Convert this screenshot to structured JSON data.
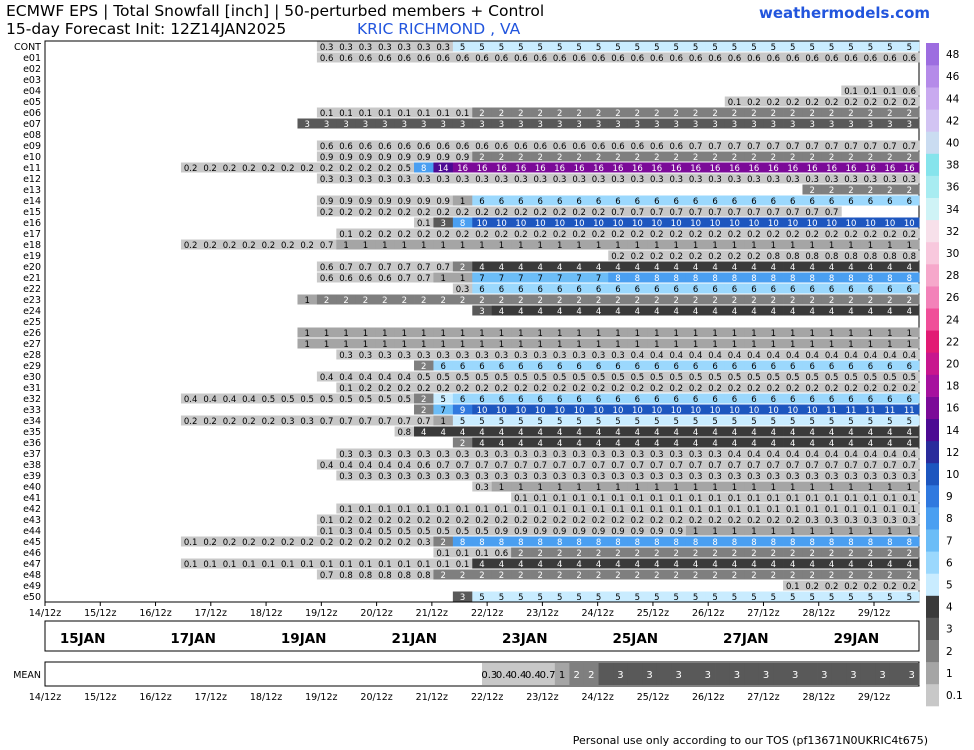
{
  "header": {
    "title_line1": "ECMWF EPS | Total Snowfall [inch] | 50-perturbed members + Control",
    "title_line2": "15-day Forecast Init: 12Z14JAN2025",
    "location": "KRIC RICHMOND      , VA",
    "site": "weathermodels.com"
  },
  "footer": "Personal use only according to our TOS (pf13671N0UKRIC4t675)",
  "chart_data": {
    "type": "heatmap",
    "title": "ECMWF EPS | Total Snowfall [inch] | 50-perturbed members + Control",
    "timesteps_per_row": 30,
    "x_ticks": [
      "14/12z",
      "15/12z",
      "16/12z",
      "17/12z",
      "18/12z",
      "19/12z",
      "20/12z",
      "21/12z",
      "22/12z",
      "23/12z",
      "24/12z",
      "25/12z",
      "26/12z",
      "27/12z",
      "28/12z",
      "29/12z"
    ],
    "date_labels": [
      "15JAN",
      "17JAN",
      "19JAN",
      "21JAN",
      "23JAN",
      "25JAN",
      "27JAN",
      "29JAN"
    ],
    "colorbar_ticks": [
      0.1,
      1,
      2,
      3,
      4,
      5,
      6,
      7,
      8,
      9,
      10,
      12,
      14,
      16,
      18,
      20,
      22,
      24,
      26,
      28,
      30,
      32,
      34,
      36,
      38,
      40,
      42,
      44,
      46,
      48
    ],
    "colorbar_colors": [
      "#c8c8c8",
      "#a5a5a5",
      "#7f7f7f",
      "#595959",
      "#3a3a3a",
      "#c9ecff",
      "#9bd8fd",
      "#6cbdf7",
      "#4a9ff1",
      "#3079df",
      "#1d56bf",
      "#2a2c9c",
      "#4c0a93",
      "#7b0a98",
      "#a6119e",
      "#c8168e",
      "#e21b74",
      "#f04e99",
      "#f382b9",
      "#f6a8cb",
      "#f8c8dd",
      "#f7e0ea",
      "#cff3f6",
      "#a8ecf1",
      "#86e4ec",
      "#cadcf1",
      "#d2c4f3",
      "#c9aaf0",
      "#b58be9",
      "#9d6de0"
    ],
    "mean_label": "MEAN",
    "mean": "0,0,0,0,0,0,0,0,0,0,0,0,0,0,0,0,0,0,0,0,0,0,0,0,0,0,0,0,0,0,0.3,0.4,0.4,0.4,0.7,1,2,2,3,3,3,3,3,3,3,3,3,3,3,3,3,3,3,3,3,3,3,3,3,3",
    "members": [
      {
        "name": "CONT",
        "values": "0,0,0,0,0,0,0,0,0,0,0,0,0,0,0,0,0,0,0,0,0,0,0,0,0,0,0,0,0,0,0,0,0,0,0,0,0,0,0,0,0,0,0,0,0,0,0,0,0,0,0,0,0,0,0,0,0,0,0,0,0,0,0,0,0,0,0,0,0,0,0,0,0,0,0,0,0,0,0,0,0,0,0,0,0,0,0,0,0,0"
      },
      {
        "name": "CONT",
        "values": "0,0,0,0,0,0,0,0,0,0,0,0,0,0,0.3,0.3,0.3,0.3,0.3,0.3,0.3,5,5,5,5,5,5,5,5,5,5,5,5,5,5,5,5,5,5,5,5,5,5,5,5"
      },
      {
        "name": "e01",
        "values": "0,0,0,0,0,0,0,0,0,0,0,0,0,0,0.6,0.6,0.6,0.6,0.6,0.6,0.6,0.6,0.6,0.6,0.6,0.6,0.6,0.6,0.6,0.6,0.6,0.6,0.6,0.6,0.6,0.6,0.6,0.6,0.6,0.6,0.6,0.6,0.6,0.6,0.6"
      },
      {
        "name": "e02",
        "values": ""
      },
      {
        "name": "e03",
        "values": ""
      },
      {
        "name": "e04",
        "values": "0,0,0,0,0,0,0,0,0,0,0,0,0,0,0,0,0,0,0,0,0,0,0,0,0,0,0,0,0,0,0,0,0,0,0,0,0,0,0,0,0,0.1,0.1,0.1,0.6"
      },
      {
        "name": "e05",
        "values": "0,0,0,0,0,0,0,0,0,0,0,0,0,0,0,0,0,0,0,0,0,0,0,0,0,0,0,0,0,0,0,0,0,0,0,0.1,0.2,0.2,0.2,0.2,0.2,0.2,0.2,0.2,0.2"
      },
      {
        "name": "e06",
        "values": "0,0,0,0,0,0,0,0,0,0,0,0,0,0,0.1,0.1,0.1,0.1,0.1,0.1,0.1,0.1,2,2,2,2,2,2,2,2,2,2,2,2,2,2,2,2,2,2,2,2,2,2,2"
      },
      {
        "name": "e07",
        "values": "0,0,0,0,0,0,0,0,0,0,0,0,0,3,3,3,3,3,3,3,3,3,3,3,3,3,3,3,3,3,3,3,3,3,3,3,3,3,3,3,3,3,3,3,3"
      },
      {
        "name": "e08",
        "values": ""
      },
      {
        "name": "e09",
        "values": "0,0,0,0,0,0,0,0,0,0,0,0,0,0,0.6,0.6,0.6,0.6,0.6,0.6,0.6,0.6,0.6,0.6,0.6,0.6,0.6,0.6,0.6,0.6,0.6,0.6,0.6,0.7,0.7,0.7,0.7,0.7,0.7,0.7,0.7,0.7,0.7,0.7,0.7"
      },
      {
        "name": "e10",
        "values": "0,0,0,0,0,0,0,0,0,0,0,0,0,0,0.9,0.9,0.9,0.9,0.9,0.9,0.9,0.9,2,2,2,2,2,2,2,2,2,2,2,2,2,2,2,2,2,2,2,2,2,2,2"
      },
      {
        "name": "e11",
        "values": "0,0,0,0,0,0,0,0.2,0.2,0.2,0.2,0.2,0.2,0.2,0.2,0.2,0.2,0.2,0.5,8,14,16,16,16,16,16,16,16,16,16,16,16,16,16,16,16,16,16,16,16,16,16,16,16,16"
      },
      {
        "name": "e12",
        "values": "0,0,0,0,0,0,0,0,0,0,0,0,0,0,0.3,0.3,0.3,0.3,0.3,0.3,0.3,0.3,0.3,0.3,0.3,0.3,0.3,0.3,0.3,0.3,0.3,0.3,0.3,0.3,0.3,0.3,0.3,0.3,0.3,0.3,0.3,0.3,0.3,0.3,0.3"
      },
      {
        "name": "e13",
        "values": "0,0,0,0,0,0,0,0,0,0,0,0,0,0,0,0,0,0,0,0,0,0,0,0,0,0,0,0,0,0,0,0,0,0,0,0,0,0,0,2,2,2,2,2,2"
      },
      {
        "name": "e14",
        "values": "0,0,0,0,0,0,0,0,0,0,0,0,0,0,0.9,0.9,0.9,0.9,0.9,0.9,0.9,1,6,6,6,6,6,6,6,6,6,6,6,6,6,6,6,6,6,6,6,6,6,6,6"
      },
      {
        "name": "e15",
        "values": "0,0,0,0,0,0,0,0,0,0,0,0,0,0,0.2,0.2,0.2,0.2,0.2,0.2,0.2,0.2,0.2,0.2,0.2,0.2,0.2,0.2,0.2,0.7,0.7,0.7,0.7,0.7,0.7,0.7,0.7,0.7,0.7,0.7,0.7"
      },
      {
        "name": "e16",
        "values": "0,0,0,0,0,0,0,0,0,0,0,0,0,0,0,0,0,0,0,0.1,3,8,10,10,10,10,10,10,10,10,10,10,10,10,10,10,10,10,10,10,10,10,10,10,10"
      },
      {
        "name": "e17",
        "values": "0,0,0,0,0,0,0,0,0,0,0,0,0,0,0,0.1,0.2,0.2,0.2,0.2,0.2,0.2,0.2,0.2,0.2,0.2,0.2,0.2,0.2,0.2,0.2,0.2,0.2,0.2,0.2,0.2,0.2,0.2,0.2,0.2,0.2,0.2,0.2,0.2,0.2"
      },
      {
        "name": "e18",
        "values": "0,0,0,0,0,0,0,0.2,0.2,0.2,0.2,0.2,0.2,0.2,0.7,1,1,1,1,1,1,1,1,1,1,1,1,1,1,1,1,1,1,1,1,1,1,1,1,1,1,1,1,1,1"
      },
      {
        "name": "e19",
        "values": "0,0,0,0,0,0,0,0,0,0,0,0,0,0,0,0,0,0,0,0,0,0,0,0,0,0,0,0,0,0.2,0.2,0.2,0.2,0.2,0.2,0.2,0.2,0.8,0.8,0.8,0.8,0.8,0.8,0.8,0.8"
      },
      {
        "name": "e20",
        "values": "0,0,0,0,0,0,0,0,0,0,0,0,0,0,0.6,0.7,0.7,0.7,0.7,0.7,0.7,2,4,4,4,4,4,4,4,4,4,4,4,4,4,4,4,4,4,4,4,4,4,4,4"
      },
      {
        "name": "e21",
        "values": "0,0,0,0,0,0,0,0,0,0,0,0,0,0,0.6,0.6,0.6,0.6,0.7,0.7,1,1,7,7,7,7,7,7,7,8,8,8,8,8,8,8,8,8,8,8,8,8,8,8,8"
      },
      {
        "name": "e22",
        "values": "0,0,0,0,0,0,0,0,0,0,0,0,0,0,0,0,0,0,0,0,0,0.3,6,6,6,6,6,6,6,6,6,6,6,6,6,6,6,6,6,6,6,6,6,6,6"
      },
      {
        "name": "e23",
        "values": "0,0,0,0,0,0,0,0,0,0,0,0,0,1,2,2,2,2,2,2,2,2,2,2,2,2,2,2,2,2,2,2,2,2,2,2,2,2,2,2,2,2,2,2,2"
      },
      {
        "name": "e24",
        "values": "0,0,0,0,0,0,0,0,0,0,0,0,0,0,0,0,0,0,0,0,0,0,3,4,4,4,4,4,4,4,4,4,4,4,4,4,4,4,4,4,4,4,4,4,4"
      },
      {
        "name": "e25",
        "values": ""
      },
      {
        "name": "e26",
        "values": "0,0,0,0,0,0,0,0,0,0,0,0,0,1,1,1,1,1,1,1,1,1,1,1,1,1,1,1,1,1,1,1,1,1,1,1,1,1,1,1,1,1,1,1,1"
      },
      {
        "name": "e27",
        "values": "0,0,0,0,0,0,0,0,0,0,0,0,0,1,1,1,1,1,1,1,1,1,1,1,1,1,1,1,1,1,1,1,1,1,1,1,1,1,1,1,1,1,1,1,1"
      },
      {
        "name": "e28",
        "values": "0,0,0,0,0,0,0,0,0,0,0,0,0,0,0,0.3,0.3,0.3,0.3,0.3,0.3,0.3,0.3,0.3,0.3,0.3,0.3,0.3,0.3,0.3,0.4,0.4,0.4,0.4,0.4,0.4,0.4,0.4,0.4,0.4,0.4,0.4,0.4,0.4,0.4"
      },
      {
        "name": "e29",
        "values": "0,0,0,0,0,0,0,0,0,0,0,0,0,0,0,0,0,0,0,2,6,6,6,6,6,6,6,6,6,6,6,6,6,6,6,6,6,6,6,6,6,6,6,6,6"
      },
      {
        "name": "e30",
        "values": "0,0,0,0,0,0,0,0,0,0,0,0,0,0,0.4,0.4,0.4,0.4,0.4,0.5,0.5,0.5,0.5,0.5,0.5,0.5,0.5,0.5,0.5,0.5,0.5,0.5,0.5,0.5,0.5,0.5,0.5,0.5,0.5,0.5,0.5,0.5,0.5,0.5,0.5"
      },
      {
        "name": "e31",
        "values": "0,0,0,0,0,0,0,0,0,0,0,0,0,0,0,0.1,0.2,0.2,0.2,0.2,0.2,0.2,0.2,0.2,0.2,0.2,0.2,0.2,0.2,0.2,0.2,0.2,0.2,0.2,0.2,0.2,0.2,0.2,0.2,0.2,0.2,0.2,0.2,0.2,0.2"
      },
      {
        "name": "e32",
        "values": "0,0,0,0,0,0,0,0.4,0.4,0.4,0.4,0.5,0.5,0.5,0.5,0.5,0.5,0.5,0.5,2,5,6,6,6,6,6,6,6,6,6,6,6,6,6,6,6,6,6,6,6,6,6,6,6,6"
      },
      {
        "name": "e33",
        "values": "0,0,0,0,0,0,0,0,0,0,0,0,0,0,0,0,0,0,0,2,7,9,10,10,10,10,10,10,10,10,10,10,10,10,10,10,10,10,10,10,11,11,11,11,11"
      },
      {
        "name": "e34",
        "values": "0,0,0,0,0,0,0,0.2,0.2,0.2,0.2,0.2,0.3,0.3,0.7,0.7,0.7,0.7,0.7,0.7,1,5,5,5,5,5,5,5,5,5,5,5,5,5,5,5,5,5,5,5,5,5,5,5,5"
      },
      {
        "name": "e35",
        "values": "0,0,0,0,0,0,0,0,0,0,0,0,0,0,0,0,0,0,0.8,4,4,4,4,4,4,4,4,4,4,4,4,4,4,4,4,4,4,4,4,4,4,4,4,4,4"
      },
      {
        "name": "e36",
        "values": "0,0,0,0,0,0,0,0,0,0,0,0,0,0,0,0,0,0,0,0,0,2,4,4,4,4,4,4,4,4,4,4,4,4,4,4,4,4,4,4,4,4,4,4,4"
      },
      {
        "name": "e37",
        "values": "0,0,0,0,0,0,0,0,0,0,0,0,0,0,0,0.3,0.3,0.3,0.3,0.3,0.3,0.3,0.3,0.3,0.3,0.3,0.3,0.3,0.3,0.3,0.3,0.3,0.3,0.3,0.3,0.4,0.4,0.4,0.4,0.4,0.4,0.4,0.4,0.4,0.4"
      },
      {
        "name": "e38",
        "values": "0,0,0,0,0,0,0,0,0,0,0,0,0,0,0.4,0.4,0.4,0.4,0.4,0.6,0.7,0.7,0.7,0.7,0.7,0.7,0.7,0.7,0.7,0.7,0.7,0.7,0.7,0.7,0.7,0.7,0.7,0.7,0.7,0.7,0.7,0.7,0.7,0.7,0.7"
      },
      {
        "name": "e39",
        "values": "0,0,0,0,0,0,0,0,0,0,0,0,0,0,0,0.3,0.3,0.3,0.3,0.3,0.3,0.3,0.3,0.3,0.3,0.3,0.3,0.3,0.3,0.3,0.3,0.3,0.3,0.3,0.3,0.3,0.3,0.3,0.3,0.3,0.3,0.3,0.3,0.3,0.3"
      },
      {
        "name": "e40",
        "values": "0,0,0,0,0,0,0,0,0,0,0,0,0,0,0,0,0,0,0,0,0,0,0.3,1,1,1,1,1,1,1,1,1,1,1,1,1,1,1,1,1,1,1,1,1,1"
      },
      {
        "name": "e41",
        "values": "0,0,0,0,0,0,0,0,0,0,0,0,0,0,0,0,0,0,0,0,0,0,0,0,0.1,0.1,0.1,0.1,0.1,0.1,0.1,0.1,0.1,0.1,0.1,0.1,0.1,0.1,0.1,0.1,0.1,0.1,0.1,0.1,0.1"
      },
      {
        "name": "e42",
        "values": "0,0,0,0,0,0,0,0,0,0,0,0,0,0,0,0.1,0.1,0.1,0.1,0.1,0.1,0.1,0.1,0.1,0.1,0.1,0.1,0.1,0.1,0.1,0.1,0.1,0.1,0.1,0.1,0.1,0.1,0.1,0.1,0.1,0.1,0.1,0.1,0.1,0.1"
      },
      {
        "name": "e43",
        "values": "0,0,0,0,0,0,0,0,0,0,0,0,0,0,0.1,0.2,0.2,0.2,0.2,0.2,0.2,0.2,0.2,0.2,0.2,0.2,0.2,0.2,0.2,0.2,0.2,0.2,0.2,0.2,0.2,0.2,0.2,0.2,0.2,0.3,0.3,0.3,0.3,0.3,0.3"
      },
      {
        "name": "e44",
        "values": "0,0,0,0,0,0,0,0,0,0,0,0,0,0,0.1,0.3,0.4,0.5,0.5,0.5,0.5,0.5,0.5,0.9,0.9,0.9,0.9,0.9,0.9,0.9,0.9,0.9,0.9,1,1,1,1,1,1,1,1,1,1,1,1"
      },
      {
        "name": "e45",
        "values": "0,0,0,0,0,0,0,0.1,0.2,0.2,0.2,0.2,0.2,0.2,0.2,0.2,0.2,0.2,0.2,0.3,2,8,8,8,8,8,8,8,8,8,8,8,8,8,8,8,8,8,8,8,8,8,8,8,8"
      },
      {
        "name": "e46",
        "values": "0,0,0,0,0,0,0,0,0,0,0,0,0,0,0,0,0,0,0,0,0.1,0.1,0.1,0.6,2,2,2,2,2,2,2,2,2,2,2,2,2,2,2,2,2,2,2,2,2"
      },
      {
        "name": "e47",
        "values": "0,0,0,0,0,0,0,0.1,0.1,0.1,0.1,0.1,0.1,0.1,0.1,0.1,0.1,0.1,0.1,0.1,0.1,0.1,4,4,4,4,4,4,4,4,4,4,4,4,4,4,4,4,4,4,4,4,4,4,4"
      },
      {
        "name": "e48",
        "values": "0,0,0,0,0,0,0,0,0,0,0,0,0,0,0.7,0.8,0.8,0.8,0.8,0.8,2,2,2,2,2,2,2,2,2,2,2,2,2,2,2,2,2,2,2,2,2,2,2,2,2"
      },
      {
        "name": "e49",
        "values": "0,0,0,0,0,0,0,0,0,0,0,0,0,0,0,0,0,0,0,0,0,0,0,0,0,0,0,0,0,0,0,0,0,0,0,0,0,0,0.1,0.2,0.2,0.2,0.2,0.2,0.2"
      },
      {
        "name": "e50",
        "values": "0,0,0,0,0,0,0,0,0,0,0,0,0,0,0,0,0,0,0,0,0,3,5,5,5,5,5,5,5,5,5,5,5,5,5,5,5,5,5,5,5,5,5,5,5"
      }
    ]
  }
}
